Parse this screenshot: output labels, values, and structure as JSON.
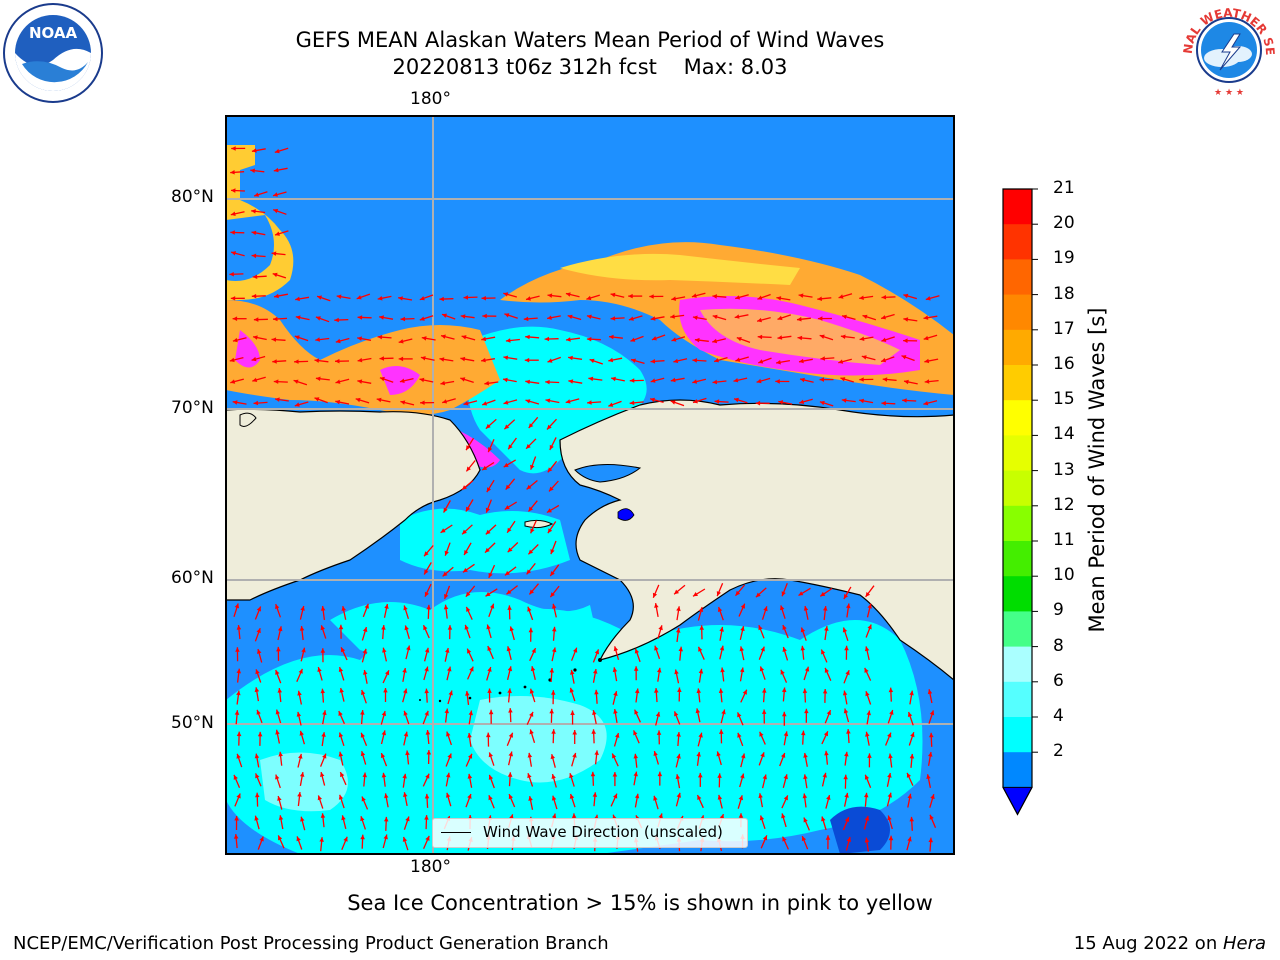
{
  "title": {
    "line1": "GEFS MEAN Alaskan Waters Mean Period of Wind Waves",
    "line2": "20220813 t06z 312h fcst",
    "max_text": "Max: 8.03"
  },
  "logos": {
    "noaa_text": "NOAA",
    "nws_text": "NATIONAL WEATHER SERVICE"
  },
  "axes": {
    "lon_top": "180°",
    "lon_bottom": "180°",
    "lat_labels": [
      "80°N",
      "70°N",
      "60°N",
      "50°N"
    ]
  },
  "legend": {
    "label": "Wind Wave Direction (unscaled)"
  },
  "colorbar": {
    "label": "Mean Period of Wind Waves [s]",
    "ticks": [
      "21",
      "20",
      "19",
      "18",
      "17",
      "16",
      "15",
      "14",
      "13",
      "12",
      "11",
      "10",
      "9",
      "8",
      "6",
      "4",
      "2"
    ],
    "colors": [
      "#ff0000",
      "#ff3300",
      "#ff6600",
      "#ff8800",
      "#ffaa00",
      "#ffcc00",
      "#ffff00",
      "#e6ff00",
      "#c8ff00",
      "#88ff00",
      "#44ee00",
      "#00dd00",
      "#44ff88",
      "#aaffff",
      "#55ffff",
      "#00ffff",
      "#0088ff"
    ],
    "under_color": "#0000ff"
  },
  "colors": {
    "land": "#efedda",
    "ocean_low": "#1e90ff",
    "ocean_mid": "#00ffff",
    "ocean_light": "#7dffff",
    "ice_pink": "#ff33ff",
    "ice_orange": "#ffaa33",
    "ice_yellow": "#ffff33",
    "arrows": "#ff0000"
  },
  "notes": {
    "sea_ice": "Sea Ice Concentration > 15% is shown in pink to yellow"
  },
  "footer": {
    "left": "NCEP/EMC/Verification Post Processing Product Generation Branch",
    "date": "15 Aug 2022 on ",
    "machine": "Hera"
  }
}
